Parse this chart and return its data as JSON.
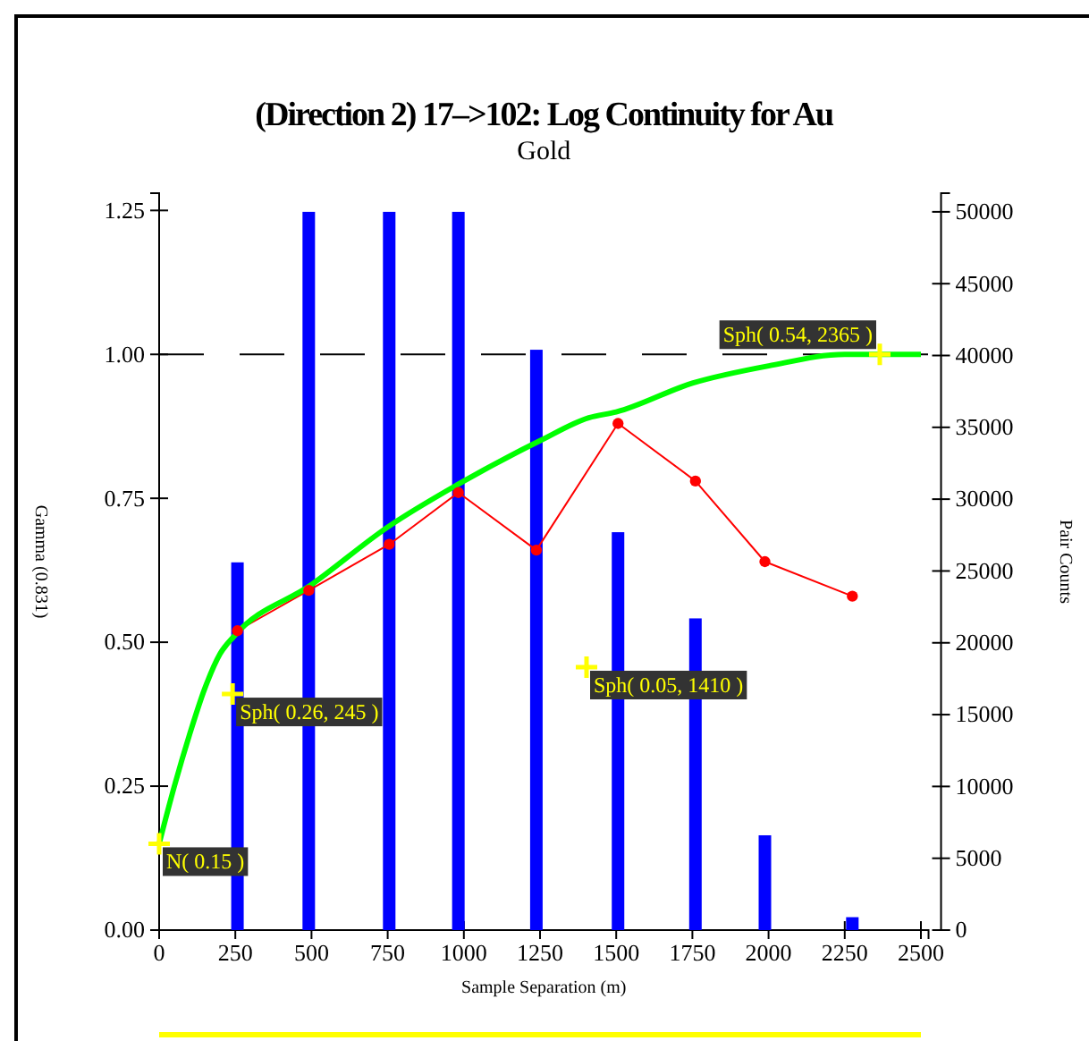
{
  "chart_data": {
    "type": "line",
    "title": "(Direction 2)  17–>102:  Log Continuity for Au",
    "subtitle": "Gold",
    "xlabel": "Sample Separation (m)",
    "ylabel": "Gamma (0.831)",
    "y2label": "Pair Counts",
    "xlim": [
      0,
      2525
    ],
    "xticks": [
      0,
      250,
      500,
      750,
      1000,
      1250,
      1500,
      1750,
      2000,
      2250,
      2500
    ],
    "ylim": [
      0,
      1.28
    ],
    "yticks": [
      {
        "value": 0,
        "label": "0.00"
      },
      {
        "value": 0.25,
        "label": "0.25"
      },
      {
        "value": 0.5,
        "label": "0.50"
      },
      {
        "value": 0.75,
        "label": "0.75"
      },
      {
        "value": 1,
        "label": "1.00"
      },
      {
        "value": 1.25,
        "label": "1.25"
      }
    ],
    "y2lim": [
      0,
      51300
    ],
    "y2ticks": [
      0,
      5000,
      10000,
      15000,
      20000,
      25000,
      30000,
      35000,
      40000,
      45000,
      50000
    ],
    "grid": false,
    "series": [
      {
        "type": "bar",
        "axis": "y2",
        "color": "#0000ff",
        "x": [
          257,
          491,
          755,
          982,
          1238,
          1506,
          1760,
          1988,
          2275
        ],
        "values": [
          25600,
          50000,
          50000,
          50000,
          40400,
          27700,
          21700,
          6600,
          900
        ]
      },
      {
        "color": "#ff0000",
        "marker": "circle",
        "x": [
          257,
          491,
          755,
          982,
          1238,
          1506,
          1760,
          1988,
          2275
        ],
        "values": [
          0.52,
          0.59,
          0.67,
          0.76,
          0.66,
          0.88,
          0.78,
          0.64,
          0.58
        ]
      },
      {
        "color": "#00ff00",
        "marker": "none",
        "x": [
          0,
          50,
          100,
          150,
          200,
          245,
          500,
          750,
          1000,
          1250,
          1410,
          1500,
          1750,
          2000,
          2250,
          2365,
          2500
        ],
        "values": [
          0.15,
          0.25,
          0.34,
          0.42,
          0.48,
          0.51,
          0.6,
          0.7,
          0.78,
          0.85,
          0.89,
          0.9,
          0.95,
          0.98,
          1,
          1,
          1
        ]
      }
    ],
    "ref_lines": [
      {
        "axis": "y",
        "value": 1,
        "color": "#000000",
        "line_style": "dashed"
      }
    ],
    "annotations": [
      {
        "text": "N( 0.15 )",
        "x": 0,
        "y": 0.15
      },
      {
        "text": "Sph( 0.26, 245 )",
        "x": 241,
        "y": 0.41
      },
      "Sph( 0.05, 1410 )",
      {
        "text": "Sph( 0.54, 2365 )",
        "x": 2365,
        "y": 1
      }
    ]
  }
}
